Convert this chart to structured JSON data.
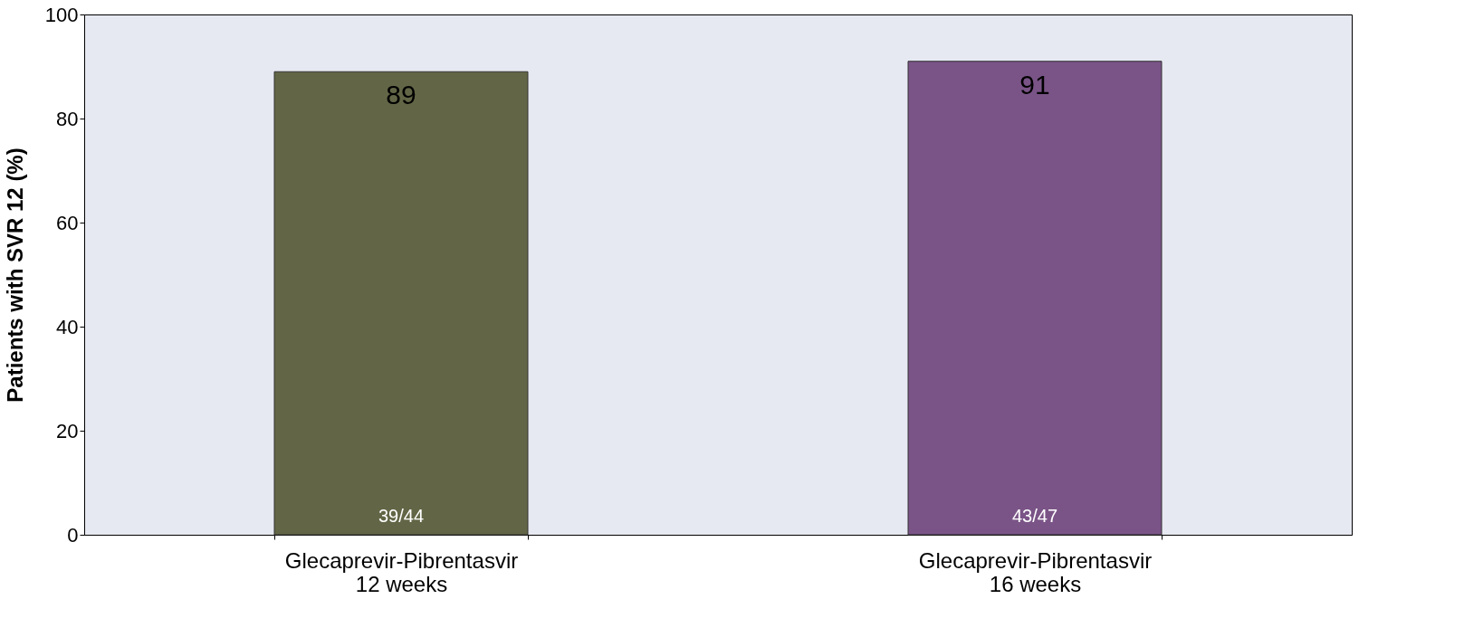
{
  "chart_data": {
    "type": "bar",
    "ylabel": "Patients with SVR 12 (%)",
    "categories": [
      "Glecaprevir-Pibrentasvir\n12 weeks",
      "Glecaprevir-Pibrentasvir\n16 weeks"
    ],
    "values": [
      89,
      91
    ],
    "colors": [
      "#636646",
      "#7a5487"
    ],
    "ylim": [
      0,
      100
    ],
    "yticks": [
      0,
      20,
      40,
      60,
      80,
      100
    ],
    "grid": false,
    "data_labels": true,
    "annotations": [
      "39/44",
      "43/47"
    ]
  }
}
